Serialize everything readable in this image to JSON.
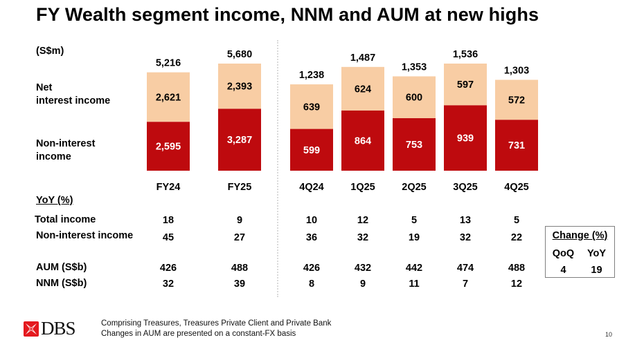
{
  "slide": {
    "title": "FY Wealth segment income, NNM and AUM at new highs",
    "unit_label": "(S$m)",
    "legend_labels": {
      "net_interest_income": [
        "Net",
        "interest income"
      ],
      "non_interest_income": [
        "Non-interest",
        "income"
      ]
    },
    "colors": {
      "net_interest_income": "#F8CDA4",
      "non_interest_income": "#BE0A0E",
      "divider": "#D9D9D9",
      "box_border": "#7F7F7F"
    },
    "page_number": "10",
    "logo_text": "DBS",
    "footnotes": [
      "Comprising Treasures, Treasures Private Client and Private Bank",
      "Changes in AUM are presented on a constant-FX basis"
    ]
  },
  "chart_data": [
    {
      "type": "bar",
      "stacked": true,
      "group": "annual",
      "title": "FY Wealth segment income",
      "ylabel": "(S$m)",
      "categories": [
        "FY24",
        "FY25"
      ],
      "series": [
        {
          "name": "Non-interest income",
          "values": [
            2595,
            3287
          ],
          "labels": [
            "2,595",
            "3,287"
          ]
        },
        {
          "name": "Net interest income",
          "values": [
            2621,
            2393
          ],
          "labels": [
            "2,621",
            "2,393"
          ]
        }
      ],
      "totals": [
        5216,
        5680
      ],
      "total_labels": [
        "5,216",
        "5,680"
      ],
      "ylim": [
        0,
        5680
      ]
    },
    {
      "type": "bar",
      "stacked": true,
      "group": "quarterly",
      "title": "Quarterly Wealth segment income",
      "ylabel": "(S$m)",
      "categories": [
        "4Q24",
        "1Q25",
        "2Q25",
        "3Q25",
        "4Q25"
      ],
      "series": [
        {
          "name": "Non-interest income",
          "values": [
            599,
            864,
            753,
            939,
            731
          ],
          "labels": [
            "599",
            "864",
            "753",
            "939",
            "731"
          ]
        },
        {
          "name": "Net interest income",
          "values": [
            639,
            624,
            600,
            597,
            572
          ],
          "labels": [
            "639",
            "624",
            "600",
            "597",
            "572"
          ]
        }
      ],
      "totals": [
        1238,
        1487,
        1353,
        1536,
        1303
      ],
      "total_labels": [
        "1,238",
        "1,487",
        "1,353",
        "1,536",
        "1,303"
      ],
      "ylim": [
        0,
        1536
      ]
    },
    {
      "type": "table",
      "title": "YoY (%)",
      "columns": [
        "FY24",
        "FY25",
        "4Q24",
        "1Q25",
        "2Q25",
        "3Q25",
        "4Q25"
      ],
      "rows": [
        {
          "label": "Total income",
          "values": [
            "18",
            "9",
            "10",
            "12",
            "5",
            "13",
            "5"
          ]
        },
        {
          "label": "Non-interest income",
          "values": [
            "45",
            "27",
            "36",
            "32",
            "19",
            "32",
            "22"
          ]
        },
        {
          "label": "AUM (S$b)",
          "values": [
            "426",
            "488",
            "426",
            "432",
            "442",
            "474",
            "488"
          ]
        },
        {
          "label": "NNM (S$b)",
          "values": [
            "32",
            "39",
            "8",
            "9",
            "11",
            "7",
            "12"
          ]
        }
      ]
    }
  ],
  "change_box": {
    "title": "Change (%)",
    "headers": [
      "QoQ",
      "YoY"
    ],
    "values": [
      "4",
      "19"
    ]
  }
}
